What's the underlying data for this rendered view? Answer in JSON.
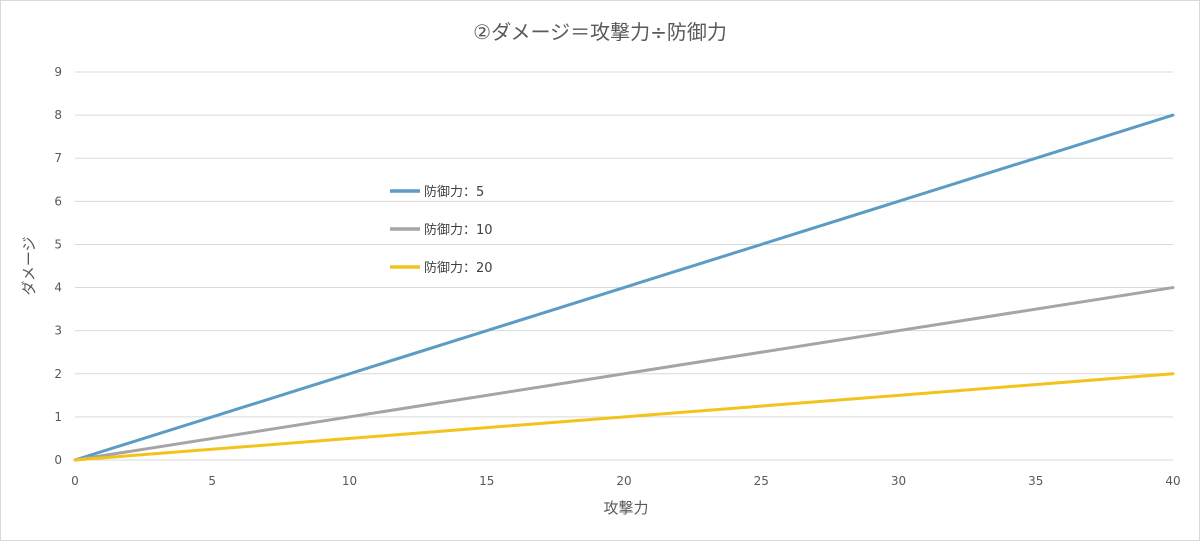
{
  "chart_data": {
    "type": "line",
    "title": "②ダメージ＝攻撃力÷防御力",
    "xlabel": "攻撃力",
    "ylabel": "ダメージ",
    "xlim": [
      0,
      40
    ],
    "ylim": [
      0,
      9
    ],
    "x_ticks": [
      0,
      5,
      10,
      15,
      20,
      25,
      30,
      35,
      40
    ],
    "y_ticks": [
      0,
      1,
      2,
      3,
      4,
      5,
      6,
      7,
      8,
      9
    ],
    "grid": true,
    "legend_position": "inside-upper-left",
    "series": [
      {
        "name": "防御力：5",
        "color": "#5b9bc4",
        "x": [
          0,
          40
        ],
        "y": [
          0,
          8
        ]
      },
      {
        "name": "防御力：10",
        "color": "#a5a5a5",
        "x": [
          0,
          40
        ],
        "y": [
          0,
          4
        ]
      },
      {
        "name": "防御力：20",
        "color": "#f2c31b",
        "x": [
          0,
          40
        ],
        "y": [
          0,
          2
        ]
      }
    ]
  }
}
